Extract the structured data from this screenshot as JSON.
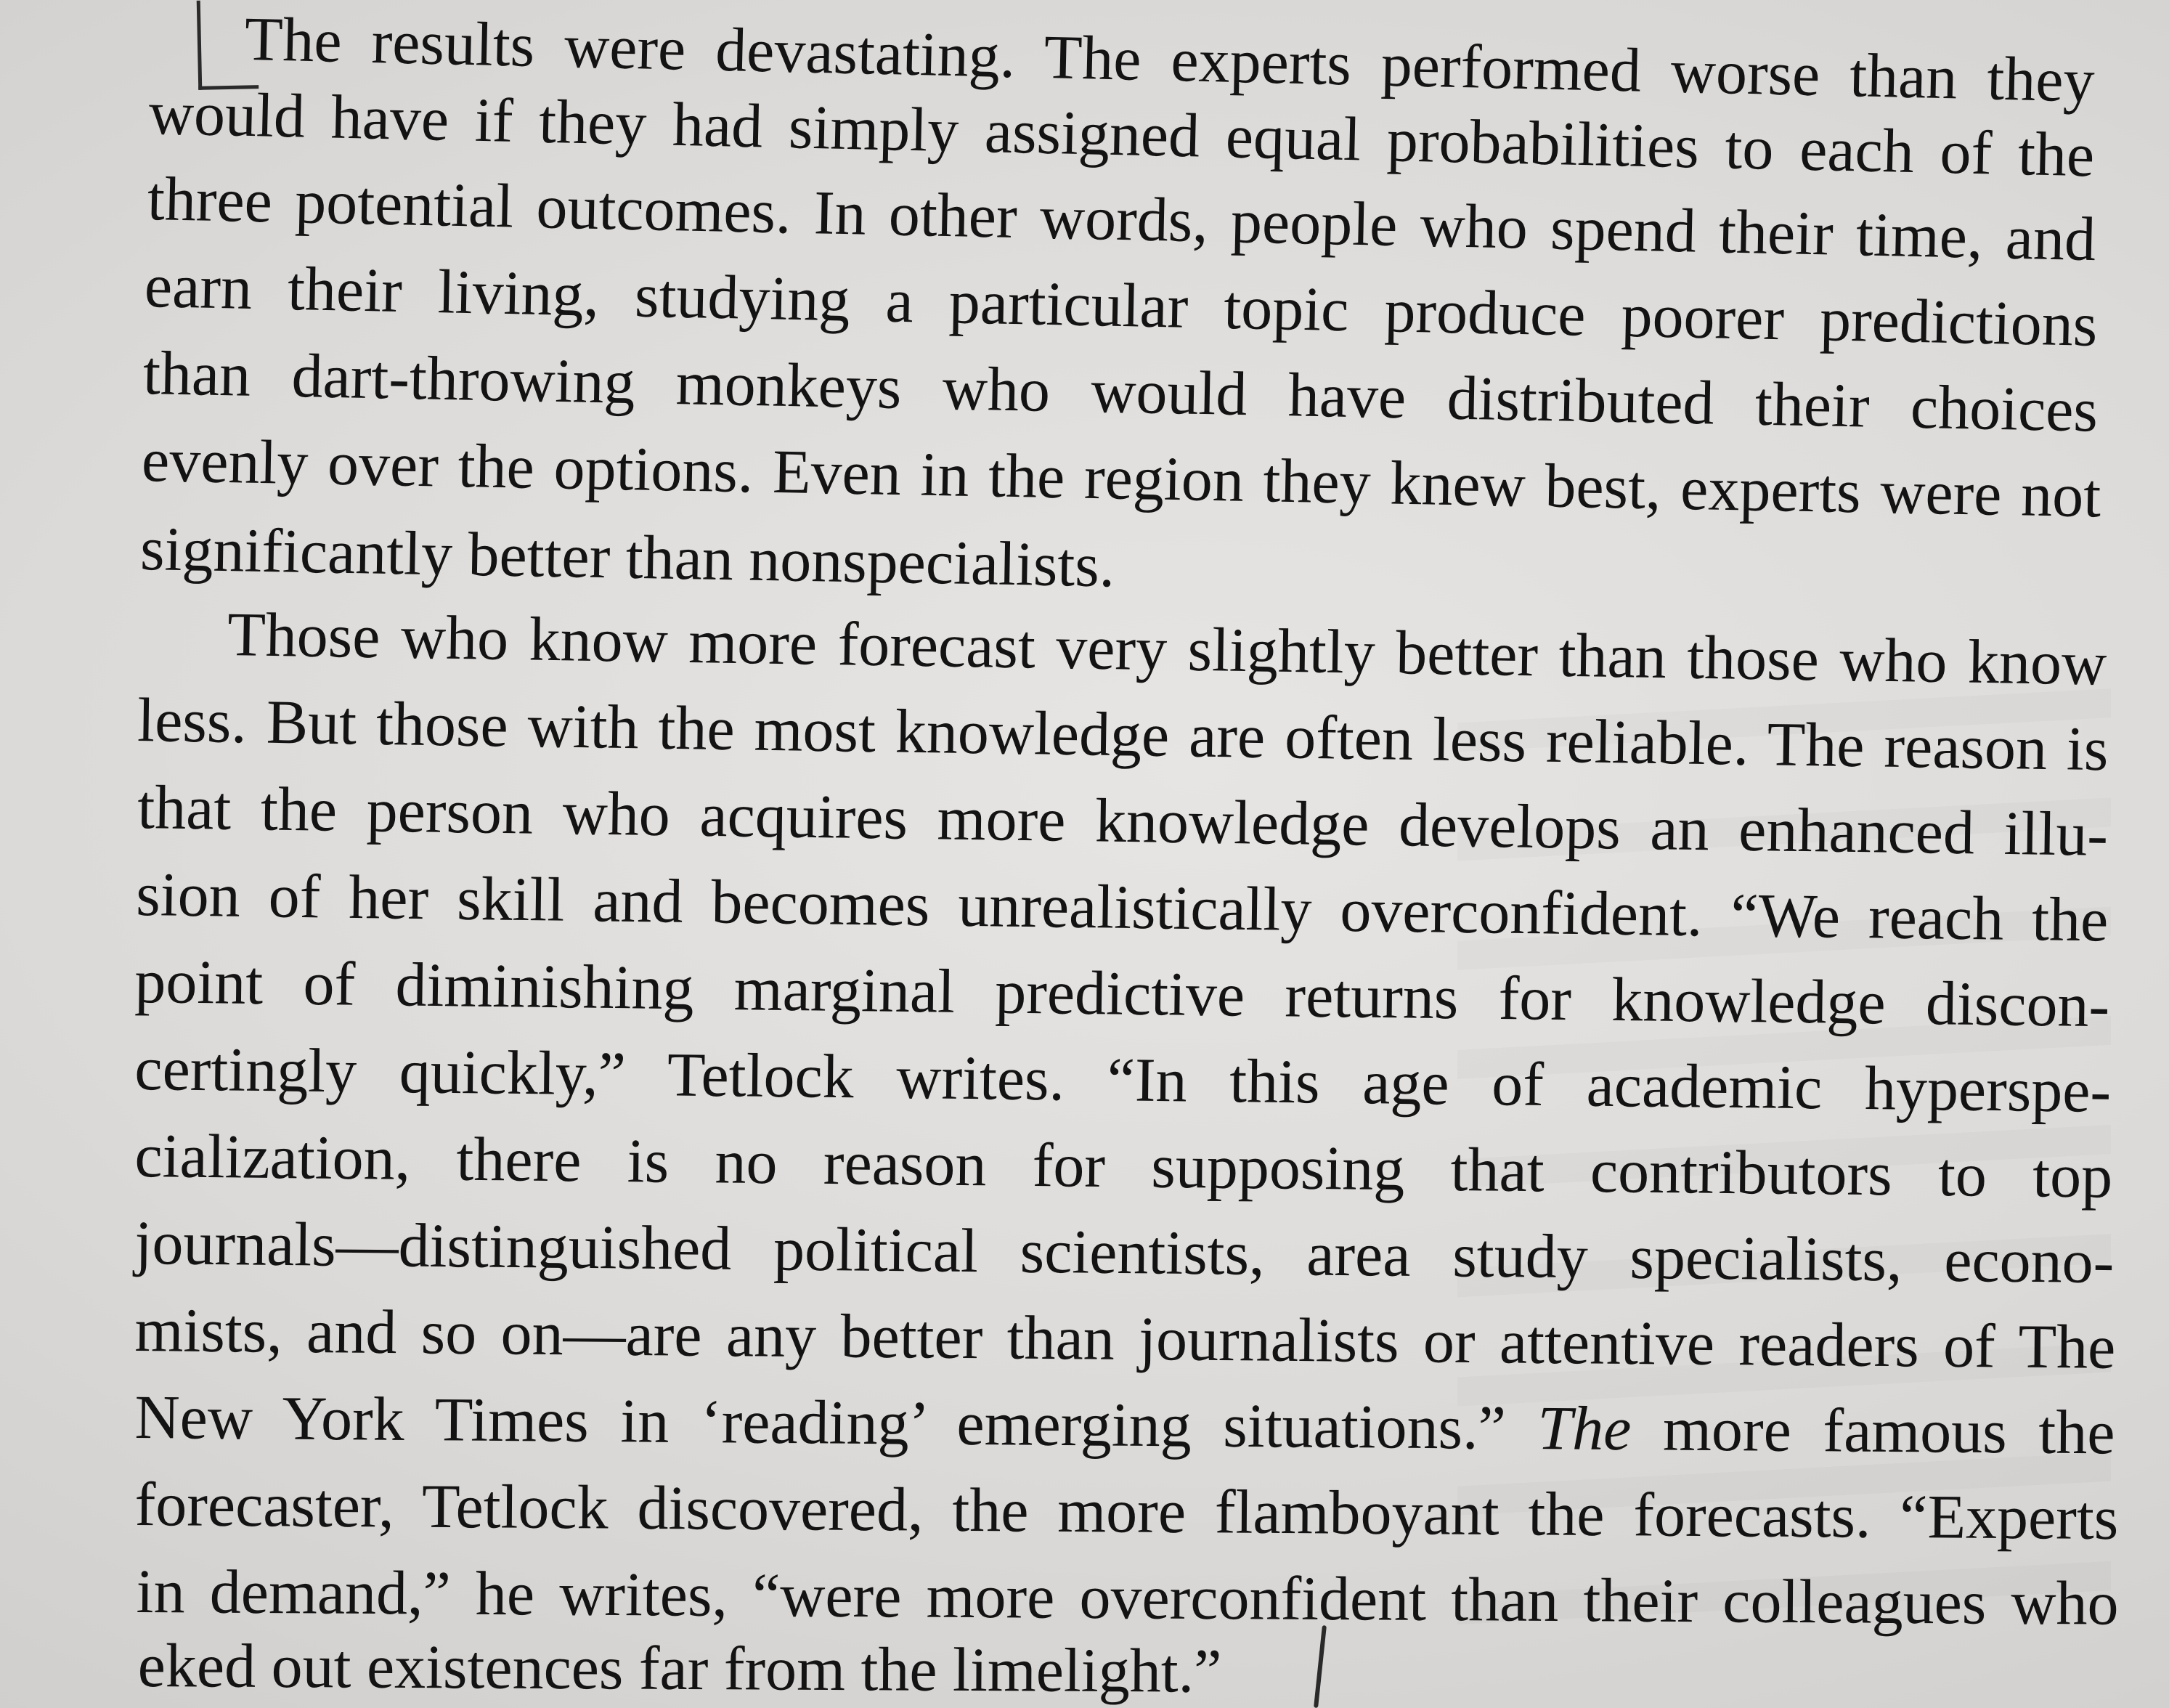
{
  "paragraphs": [
    {
      "lines": [
        "The results were devastating. The experts performed worse than they",
        "would have if they had simply assigned equal probabilities to each of the",
        "three potential outcomes. In other words, people who spend their time, and",
        "earn their living, studying a particular topic produce poorer predictions",
        "than dart-throwing monkeys who would have distributed their choices",
        "evenly over the options. Even in the region they knew best, experts were not",
        "significantly better than nonspecialists."
      ]
    },
    {
      "lines": [
        "Those who know more forecast very slightly better than those who know",
        "less. But those with the most knowledge are often less reliable. The reason is",
        "that the person who acquires more knowledge develops an enhanced illu-",
        "sion of her skill and becomes unrealistically overconfident. “We reach the",
        "point of diminishing marginal predictive returns for knowledge discon-",
        "certingly quickly,” Tetlock writes. “In this age of academic hyperspe-",
        "cialization, there is no reason for supposing that contributors to top",
        "journals—distinguished political scientists, area study specialists, econo-",
        "mists, and so on—are any better than journalists or attentive readers of The",
        "New York Times in ‘reading’ emerging situations.” The more famous the",
        "forecaster, Tetlock discovered, the more flamboyant the forecasts. “Experts",
        "in demand,” he writes, “were more overconfident than their colleagues who",
        "eked out existences far from the limelight.”"
      ]
    }
  ]
}
